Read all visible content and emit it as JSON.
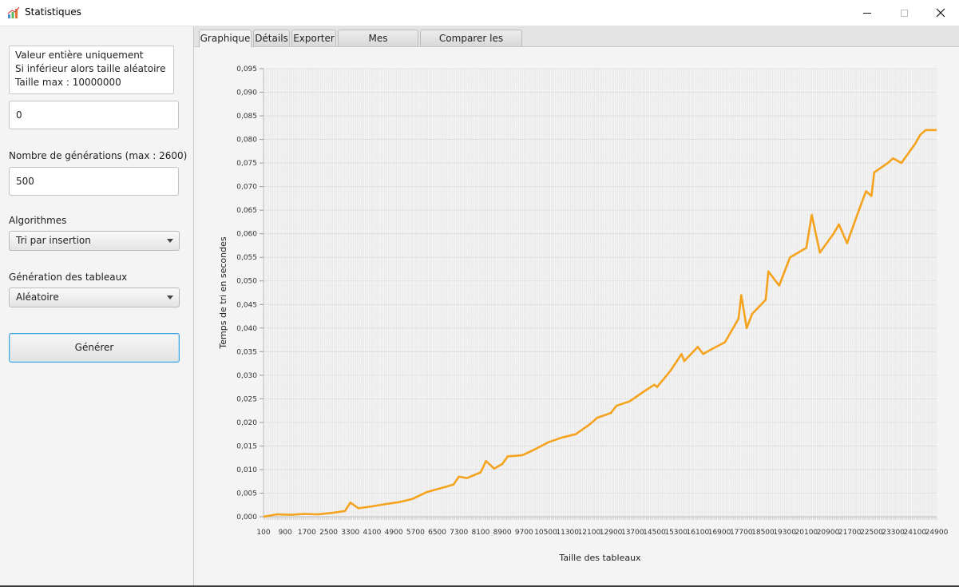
{
  "window": {
    "title": "Statistiques",
    "minimize_icon": "minimize-icon",
    "maximize_icon": "maximize-icon",
    "close_icon": "close-icon"
  },
  "sidebar": {
    "hint_lines": [
      "Valeur entière uniquement",
      "Si inférieur alors taille aléatoire",
      "Taille max : 10000000"
    ],
    "size_value": "0",
    "generations_label": "Nombre de générations (max : 2600)",
    "generations_value": "500",
    "algorithms_label": "Algorithmes",
    "algorithm_selected": "Tri par insertion",
    "generation_label": "Génération des tableaux",
    "generation_selected": "Aléatoire",
    "generate_button": "Générer"
  },
  "tabs": [
    {
      "label": "Graphique",
      "active": true
    },
    {
      "label": "Détails",
      "active": false
    },
    {
      "label": "Exporter",
      "active": false
    },
    {
      "label": "Mes sauvegardes",
      "active": false
    },
    {
      "label": "Comparer les résultats",
      "active": false
    }
  ],
  "colors": {
    "series": "#f5a21d",
    "accent_focus": "#3ea5dd"
  },
  "chart_data": {
    "type": "line",
    "title": "",
    "xlabel": "Taille des tableaux",
    "ylabel": "Temps de tri en secondes",
    "ylim": [
      0,
      0.095
    ],
    "xlim": [
      100,
      24900
    ],
    "grid": true,
    "legend": "none",
    "y_ticks": [
      "0,000",
      "0,005",
      "0,010",
      "0,015",
      "0,020",
      "0,025",
      "0,030",
      "0,035",
      "0,040",
      "0,045",
      "0,050",
      "0,055",
      "0,060",
      "0,065",
      "0,070",
      "0,075",
      "0,080",
      "0,085",
      "0,090",
      "0,095"
    ],
    "x_tick_labels": [
      "100",
      "900",
      "1700",
      "2500",
      "3300",
      "4100",
      "4900",
      "5700",
      "6500",
      "7300",
      "8100",
      "8900",
      "9700",
      "10500",
      "11300",
      "12100",
      "12900",
      "13700",
      "14500",
      "15300",
      "16100",
      "16900",
      "17700",
      "18500",
      "19300",
      "20100",
      "20900",
      "21700",
      "22500",
      "23300",
      "24100",
      "24900"
    ],
    "series": [
      {
        "x": [
          100,
          600,
          1100,
          1600,
          2100,
          2600,
          3100,
          3300,
          3600,
          4100,
          4600,
          5100,
          5600,
          6100,
          6600,
          7100,
          7300,
          7600,
          8100,
          8300,
          8600,
          8900,
          9100,
          9600,
          9700,
          10100,
          10600,
          11100,
          11600,
          12100,
          12400,
          12900,
          13100,
          13600,
          14100,
          14500,
          14600,
          15100,
          15500,
          15600,
          16100,
          16300,
          16600,
          17100,
          17600,
          17700,
          17900,
          18100,
          18600,
          18700,
          19100,
          19300,
          19500,
          20100,
          20300,
          20600,
          21100,
          21300,
          21600,
          22100,
          22300,
          22500,
          22600,
          23100,
          23300,
          23600,
          24100,
          24300,
          24500,
          24900
        ],
        "y": [
          0.0,
          0.0005,
          0.0004,
          0.0006,
          0.0005,
          0.0008,
          0.0012,
          0.003,
          0.0018,
          0.0022,
          0.0027,
          0.0031,
          0.0038,
          0.0052,
          0.006,
          0.0068,
          0.0085,
          0.0082,
          0.0094,
          0.0118,
          0.0102,
          0.0112,
          0.0128,
          0.013,
          0.0132,
          0.0143,
          0.0158,
          0.0168,
          0.0175,
          0.0195,
          0.021,
          0.022,
          0.0235,
          0.0245,
          0.0265,
          0.028,
          0.0275,
          0.031,
          0.0345,
          0.033,
          0.036,
          0.0345,
          0.0355,
          0.037,
          0.042,
          0.047,
          0.04,
          0.043,
          0.046,
          0.052,
          0.049,
          0.052,
          0.055,
          0.057,
          0.064,
          0.056,
          0.06,
          0.062,
          0.058,
          0.066,
          0.069,
          0.068,
          0.073,
          0.075,
          0.076,
          0.075,
          0.079,
          0.081,
          0.082,
          0.082
        ]
      }
    ]
  }
}
